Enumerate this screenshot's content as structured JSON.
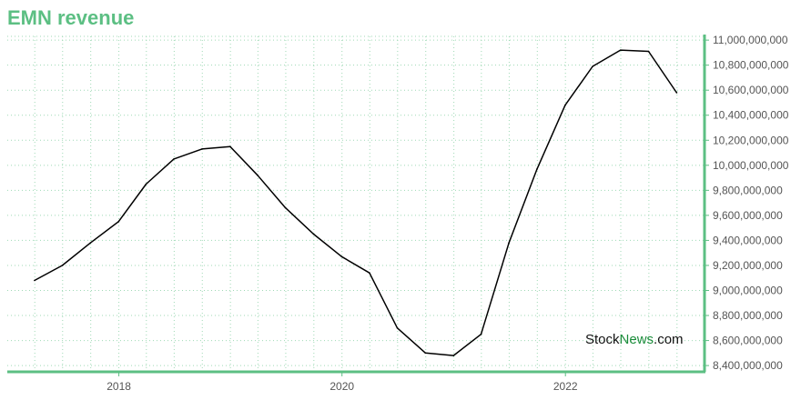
{
  "title": "EMN revenue",
  "watermark": {
    "part1": "Stock",
    "part2": "News",
    "part3": ".com"
  },
  "colors": {
    "title": "#5cbf83",
    "axis": "#5cbf83",
    "grid": "#9fd9b5",
    "line": "#000000",
    "watermark_dark": "#111111",
    "watermark_green": "#1a8c3a"
  },
  "chart_data": {
    "type": "line",
    "title": "EMN revenue",
    "xlabel": "",
    "ylabel": "",
    "x_tick_labels": [
      "2018",
      "2020",
      "2022"
    ],
    "y_tick_labels": [
      "8,400,000,000",
      "8,600,000,000",
      "8,800,000,000",
      "9,000,000,000",
      "9,200,000,000",
      "9,400,000,000",
      "9,600,000,000",
      "9,800,000,000",
      "10,000,000,000",
      "10,200,000,000",
      "10,400,000,000",
      "10,600,000,000",
      "10,800,000,000",
      "11,000,000,000"
    ],
    "ylim": [
      8350000000,
      11030000000
    ],
    "xlim": [
      "2017-01-01",
      "2023-04-01"
    ],
    "grid": true,
    "y_axis_position": "right",
    "series": [
      {
        "x": [
          "2017-03-31",
          "2017-06-30",
          "2017-09-30",
          "2017-12-31",
          "2018-03-31",
          "2018-06-30",
          "2018-09-30",
          "2018-12-31",
          "2019-03-31",
          "2019-06-30",
          "2019-09-30",
          "2019-12-31",
          "2020-03-31",
          "2020-06-30",
          "2020-09-30",
          "2020-12-31",
          "2021-03-31",
          "2021-06-30",
          "2021-09-30",
          "2021-12-31",
          "2022-03-31",
          "2022-06-30",
          "2022-09-30",
          "2022-12-31"
        ],
        "values": [
          9080000000,
          9200000000,
          9380000000,
          9550000000,
          9850000000,
          10050000000,
          10130000000,
          10150000000,
          9920000000,
          9660000000,
          9450000000,
          9270000000,
          9140000000,
          8700000000,
          8500000000,
          8480000000,
          8650000000,
          9380000000,
          9970000000,
          10480000000,
          10790000000,
          10920000000,
          10910000000,
          10580000000
        ]
      }
    ]
  }
}
